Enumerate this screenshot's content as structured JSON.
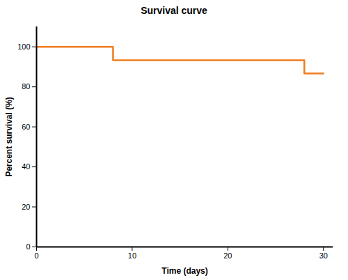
{
  "chart_data": {
    "type": "line",
    "title": "Survival curve",
    "x_label": "Time (days)",
    "y_label": "Percent survival (%)",
    "x": [
      0,
      8,
      28,
      30
    ],
    "series": [
      {
        "name": "Survival",
        "color": "#f07d1e",
        "values": [
          100,
          93.3,
          86.7,
          86.7
        ],
        "line_style": "step"
      }
    ],
    "xlim": [
      0,
      31
    ],
    "xticks": [
      0,
      10,
      20,
      30
    ],
    "ylim": [
      0,
      110
    ],
    "yticks": [
      0,
      20,
      40,
      60,
      80,
      100
    ],
    "grid": false
  }
}
